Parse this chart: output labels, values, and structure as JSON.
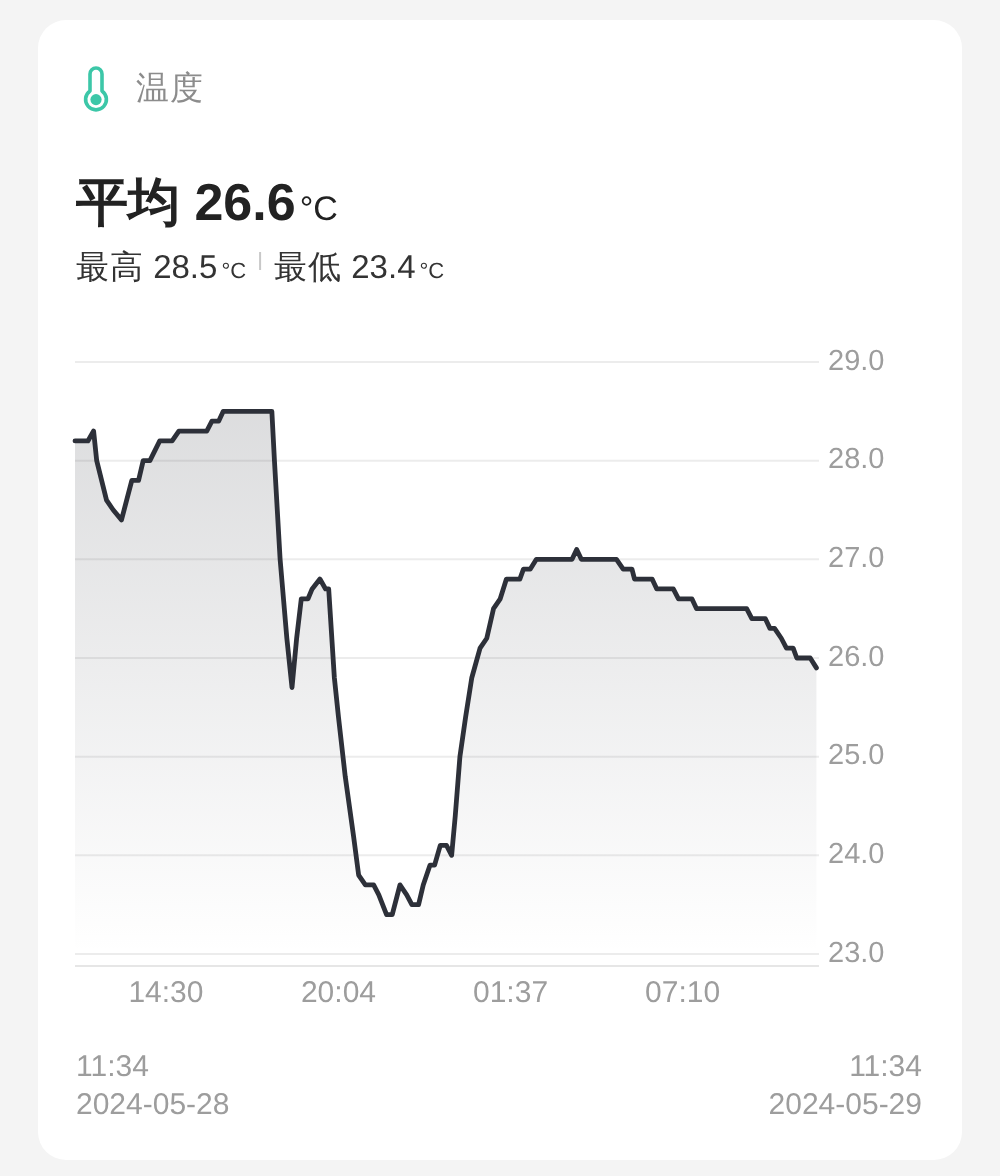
{
  "chart_data": {
    "type": "area",
    "title": "温度",
    "subtitle": "平均 26.6°C",
    "annotations": [
      "最高 28.5°C",
      "最低 23.4°C",
      "11:34\n2024-05-28",
      "11:34\n2024-05-29"
    ],
    "x": [
      "2024-05-28T11:34",
      "2024-05-28T11:59",
      "2024-05-28T12:10",
      "2024-05-28T12:16",
      "2024-05-28T12:35",
      "2024-05-28T12:48",
      "2024-05-28T13:04",
      "2024-05-28T13:14",
      "2024-05-28T13:24",
      "2024-05-28T13:37",
      "2024-05-28T13:46",
      "2024-05-28T13:59",
      "2024-05-28T14:18",
      "2024-05-28T14:42",
      "2024-05-28T14:55",
      "2024-05-28T15:49",
      "2024-05-28T15:59",
      "2024-05-28T16:12",
      "2024-05-28T16:21",
      "2024-05-28T17:55",
      "2024-05-28T18:00",
      "2024-05-28T18:11",
      "2024-05-28T18:24",
      "2024-05-28T18:34",
      "2024-05-28T18:43",
      "2024-05-28T18:52",
      "2024-05-28T19:05",
      "2024-05-28T19:13",
      "2024-05-28T19:28",
      "2024-05-28T19:39",
      "2024-05-28T19:45",
      "2024-05-28T19:56",
      "2024-05-28T20:04",
      "2024-05-28T20:17",
      "2024-05-28T20:33",
      "2024-05-28T20:43",
      "2024-05-28T20:56",
      "2024-05-28T21:12",
      "2024-05-28T21:22",
      "2024-05-28T21:37",
      "2024-05-28T21:48",
      "2024-05-28T22:03",
      "2024-05-28T22:16",
      "2024-05-28T22:26",
      "2024-05-28T22:39",
      "2024-05-28T22:48",
      "2024-05-28T23:01",
      "2024-05-28T23:10",
      "2024-05-28T23:21",
      "2024-05-28T23:33",
      "2024-05-28T23:43",
      "2024-05-28T23:50",
      "2024-05-28T23:59",
      "2024-05-29T00:10",
      "2024-05-29T00:22",
      "2024-05-29T00:38",
      "2024-05-29T00:51",
      "2024-05-29T01:04",
      "2024-05-29T01:17",
      "2024-05-29T01:29",
      "2024-05-29T01:55",
      "2024-05-29T02:02",
      "2024-05-29T02:15",
      "2024-05-29T02:27",
      "2024-05-29T03:36",
      "2024-05-29T03:45",
      "2024-05-29T03:54",
      "2024-05-29T05:02",
      "2024-05-29T05:15",
      "2024-05-29T05:32",
      "2024-05-29T05:37",
      "2024-05-29T06:11",
      "2024-05-29T06:20",
      "2024-05-29T06:52",
      "2024-05-29T07:02",
      "2024-05-29T07:28",
      "2024-05-29T07:37",
      "2024-05-29T09:14",
      "2024-05-29T09:24",
      "2024-05-29T09:50",
      "2024-05-29T09:59",
      "2024-05-29T10:08",
      "2024-05-29T10:21",
      "2024-05-29T10:31",
      "2024-05-29T10:44",
      "2024-05-29T10:51",
      "2024-05-29T11:17",
      "2024-05-29T11:29"
    ],
    "values": [
      28.2,
      28.2,
      28.3,
      28.0,
      27.6,
      27.5,
      27.4,
      27.6,
      27.8,
      27.8,
      28.0,
      28.0,
      28.2,
      28.2,
      28.3,
      28.3,
      28.4,
      28.4,
      28.5,
      28.5,
      28.0,
      27.0,
      26.2,
      25.7,
      26.2,
      26.6,
      26.6,
      26.7,
      26.8,
      26.7,
      26.7,
      25.8,
      25.4,
      24.8,
      24.2,
      23.8,
      23.7,
      23.7,
      23.6,
      23.4,
      23.4,
      23.7,
      23.6,
      23.5,
      23.5,
      23.7,
      23.9,
      23.9,
      24.1,
      24.1,
      24.0,
      24.4,
      25.0,
      25.4,
      25.8,
      26.1,
      26.2,
      26.5,
      26.6,
      26.8,
      26.8,
      26.9,
      26.9,
      27.0,
      27.0,
      27.1,
      27.0,
      27.0,
      26.9,
      26.9,
      26.8,
      26.8,
      26.7,
      26.7,
      26.6,
      26.6,
      26.5,
      26.5,
      26.4,
      26.4,
      26.3,
      26.3,
      26.2,
      26.1,
      26.1,
      26.0,
      26.0,
      25.9
    ],
    "color": "#2d3039",
    "xlim": [
      "2024-05-28T11:34",
      "2024-05-29T11:34"
    ],
    "xticks": [
      {
        "value": "2024-05-28T14:30",
        "label": "14:30"
      },
      {
        "value": "2024-05-28T20:04",
        "label": "20:04"
      },
      {
        "value": "2024-05-29T01:37",
        "label": "01:37"
      },
      {
        "value": "2024-05-29T07:10",
        "label": "07:10"
      }
    ],
    "ylim": [
      23,
      29
    ],
    "yticks": [
      {
        "value": 23,
        "label": "23.0"
      },
      {
        "value": 24,
        "label": "24.0"
      },
      {
        "value": 25,
        "label": "25.0"
      },
      {
        "value": 26,
        "label": "26.0"
      },
      {
        "value": 27,
        "label": "27.0"
      },
      {
        "value": 28,
        "label": "28.0"
      },
      {
        "value": 29,
        "label": "29.0"
      }
    ],
    "grid": "y"
  }
}
